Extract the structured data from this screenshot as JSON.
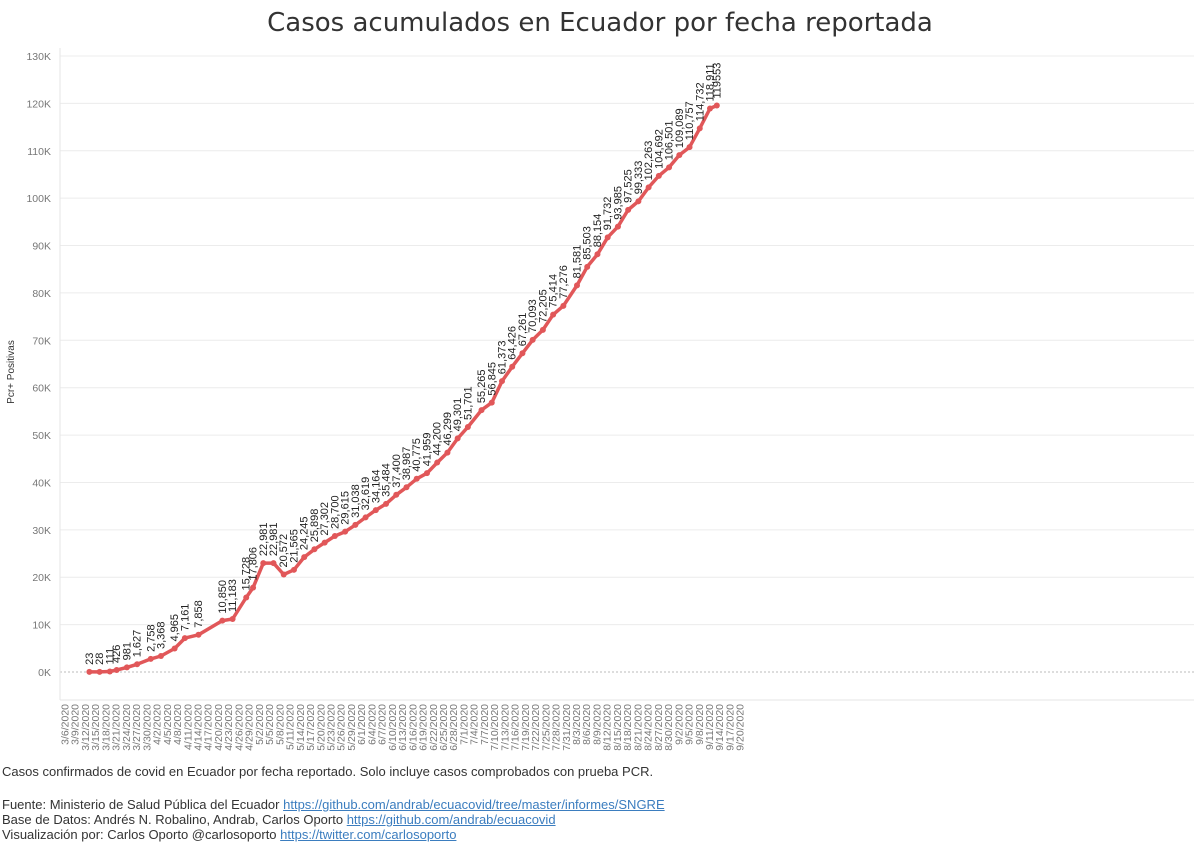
{
  "colors": {
    "line": "#e15759",
    "grid": "#ececec",
    "axis_text": "#777777",
    "label_text": "#222222",
    "link": "#3b7dbf"
  },
  "chart_data": {
    "type": "line",
    "title": "Casos acumulados en Ecuador por fecha reportada",
    "ylabel": "Pcr+ Positivas",
    "xlabel": "",
    "ylim": [
      0,
      130000
    ],
    "ytick_values": [
      0,
      10000,
      20000,
      30000,
      40000,
      50000,
      60000,
      70000,
      80000,
      90000,
      100000,
      110000,
      120000,
      130000
    ],
    "ytick_labels": [
      "0K",
      "10K",
      "20K",
      "30K",
      "40K",
      "50K",
      "60K",
      "70K",
      "80K",
      "90K",
      "100K",
      "110K",
      "120K",
      "130K"
    ],
    "x_start": "3/6/2020",
    "x_end": "9/22/2020",
    "xtick_labels": [
      "3/6/2020",
      "3/9/2020",
      "3/12/2020",
      "3/15/2020",
      "3/18/2020",
      "3/21/2020",
      "3/24/2020",
      "3/27/2020",
      "3/30/2020",
      "4/2/2020",
      "4/5/2020",
      "4/8/2020",
      "4/11/2020",
      "4/14/2020",
      "4/17/2020",
      "4/20/2020",
      "4/23/2020",
      "4/26/2020",
      "4/29/2020",
      "5/2/2020",
      "5/5/2020",
      "5/8/2020",
      "5/11/2020",
      "5/14/2020",
      "5/17/2020",
      "5/20/2020",
      "5/23/2020",
      "5/26/2020",
      "5/29/2020",
      "6/1/2020",
      "6/4/2020",
      "6/7/2020",
      "6/10/2020",
      "6/13/2020",
      "6/16/2020",
      "6/19/2020",
      "6/22/2020",
      "6/25/2020",
      "6/28/2020",
      "7/1/2020",
      "7/4/2020",
      "7/7/2020",
      "7/10/2020",
      "7/13/2020",
      "7/16/2020",
      "7/19/2020",
      "7/22/2020",
      "7/25/2020",
      "7/28/2020",
      "7/31/2020",
      "8/3/2020",
      "8/6/2020",
      "8/9/2020",
      "8/12/2020",
      "8/15/2020",
      "8/18/2020",
      "8/21/2020",
      "8/24/2020",
      "8/27/2020",
      "8/30/2020",
      "9/2/2020",
      "9/5/2020",
      "9/8/2020",
      "9/11/2020",
      "9/14/2020",
      "9/17/2020",
      "9/20/2020"
    ],
    "series": [
      {
        "name": "Pcr+ Positivas",
        "points": [
          {
            "x": "3/13/2020",
            "y": 23,
            "label": "23"
          },
          {
            "x": "3/16/2020",
            "y": 28,
            "label": "28"
          },
          {
            "x": "3/19/2020",
            "y": 111,
            "label": "111"
          },
          {
            "x": "3/21/2020",
            "y": 426,
            "label": "426"
          },
          {
            "x": "3/24/2020",
            "y": 981,
            "label": "981"
          },
          {
            "x": "3/27/2020",
            "y": 1627,
            "label": "1,627"
          },
          {
            "x": "3/31/2020",
            "y": 2758,
            "label": "2,758"
          },
          {
            "x": "4/3/2020",
            "y": 3368,
            "label": "3,368"
          },
          {
            "x": "4/7/2020",
            "y": 4965,
            "label": "4,965"
          },
          {
            "x": "4/10/2020",
            "y": 7161,
            "label": "7,161"
          },
          {
            "x": "4/14/2020",
            "y": 7858,
            "label": "7,858"
          },
          {
            "x": "4/21/2020",
            "y": 10850,
            "label": "10,850"
          },
          {
            "x": "4/24/2020",
            "y": 11183,
            "label": "11,183"
          },
          {
            "x": "4/28/2020",
            "y": 15728,
            "label": "15,728"
          },
          {
            "x": "4/30/2020",
            "y": 17806,
            "label": "17,806"
          },
          {
            "x": "5/3/2020",
            "y": 22981,
            "label": "22,981"
          },
          {
            "x": "5/6/2020",
            "y": 22981,
            "label": "22,981"
          },
          {
            "x": "5/9/2020",
            "y": 20572,
            "label": "20,572"
          },
          {
            "x": "5/12/2020",
            "y": 21565,
            "label": "21,565"
          },
          {
            "x": "5/15/2020",
            "y": 24245,
            "label": "24,245"
          },
          {
            "x": "5/18/2020",
            "y": 25898,
            "label": "25,898"
          },
          {
            "x": "5/21/2020",
            "y": 27302,
            "label": "27,302"
          },
          {
            "x": "5/24/2020",
            "y": 28700,
            "label": "28,700"
          },
          {
            "x": "5/27/2020",
            "y": 29615,
            "label": "29,615"
          },
          {
            "x": "5/30/2020",
            "y": 31038,
            "label": "31,038"
          },
          {
            "x": "6/2/2020",
            "y": 32619,
            "label": "32,619"
          },
          {
            "x": "6/5/2020",
            "y": 34164,
            "label": "34,164"
          },
          {
            "x": "6/8/2020",
            "y": 35484,
            "label": "35,484"
          },
          {
            "x": "6/11/2020",
            "y": 37400,
            "label": "37,400"
          },
          {
            "x": "6/14/2020",
            "y": 38987,
            "label": "38,987"
          },
          {
            "x": "6/17/2020",
            "y": 40775,
            "label": "40,775"
          },
          {
            "x": "6/20/2020",
            "y": 41959,
            "label": "41,959"
          },
          {
            "x": "6/23/2020",
            "y": 44200,
            "label": "44,200"
          },
          {
            "x": "6/26/2020",
            "y": 46299,
            "label": "46,299"
          },
          {
            "x": "6/29/2020",
            "y": 49301,
            "label": "49,301"
          },
          {
            "x": "7/2/2020",
            "y": 51701,
            "label": "51,701"
          },
          {
            "x": "7/6/2020",
            "y": 55265,
            "label": "55,265"
          },
          {
            "x": "7/9/2020",
            "y": 56845,
            "label": "56,845"
          },
          {
            "x": "7/12/2020",
            "y": 61373,
            "label": "61,373"
          },
          {
            "x": "7/15/2020",
            "y": 64426,
            "label": "64,426"
          },
          {
            "x": "7/18/2020",
            "y": 67261,
            "label": "67,261"
          },
          {
            "x": "7/21/2020",
            "y": 70093,
            "label": "70,093"
          },
          {
            "x": "7/24/2020",
            "y": 72205,
            "label": "72,205"
          },
          {
            "x": "7/27/2020",
            "y": 75414,
            "label": "75,414"
          },
          {
            "x": "7/30/2020",
            "y": 77276,
            "label": "77,276"
          },
          {
            "x": "8/3/2020",
            "y": 81581,
            "label": "81,581"
          },
          {
            "x": "8/6/2020",
            "y": 85503,
            "label": "85,503"
          },
          {
            "x": "8/9/2020",
            "y": 88154,
            "label": "88,154"
          },
          {
            "x": "8/12/2020",
            "y": 91732,
            "label": "91,732"
          },
          {
            "x": "8/15/2020",
            "y": 93985,
            "label": "93,985"
          },
          {
            "x": "8/18/2020",
            "y": 97525,
            "label": "97,525"
          },
          {
            "x": "8/21/2020",
            "y": 99333,
            "label": "99,333"
          },
          {
            "x": "8/24/2020",
            "y": 102263,
            "label": "102,263"
          },
          {
            "x": "8/27/2020",
            "y": 104692,
            "label": "104,692"
          },
          {
            "x": "8/30/2020",
            "y": 106501,
            "label": "106,501"
          },
          {
            "x": "9/2/2020",
            "y": 109089,
            "label": "109,089"
          },
          {
            "x": "9/5/2020",
            "y": 110757,
            "label": "110,757"
          },
          {
            "x": "9/8/2020",
            "y": 114732,
            "label": "114,732"
          },
          {
            "x": "9/11/2020",
            "y": 118911,
            "label": "118,911"
          },
          {
            "x": "9/13/2020",
            "y": 119553,
            "label": "119553"
          }
        ]
      }
    ]
  },
  "footer": {
    "description": "Casos confirmados de covid en Ecuador por fecha reportado. Solo incluye casos comprobados con prueba PCR.",
    "source_prefix": "Fuente: Ministerio de Salud Pública del Ecuador ",
    "source_link": "https://github.com/andrab/ecuacovid/tree/master/informes/SNGRE",
    "database_prefix": "Base de Datos: Andrés N. Robalino, Andrab, Carlos Oporto ",
    "database_link": "https://github.com/andrab/ecuacovid",
    "viz_prefix": "Visualización por: Carlos Oporto @carlosoporto ",
    "viz_link": "https://twitter.com/carlosoporto"
  }
}
